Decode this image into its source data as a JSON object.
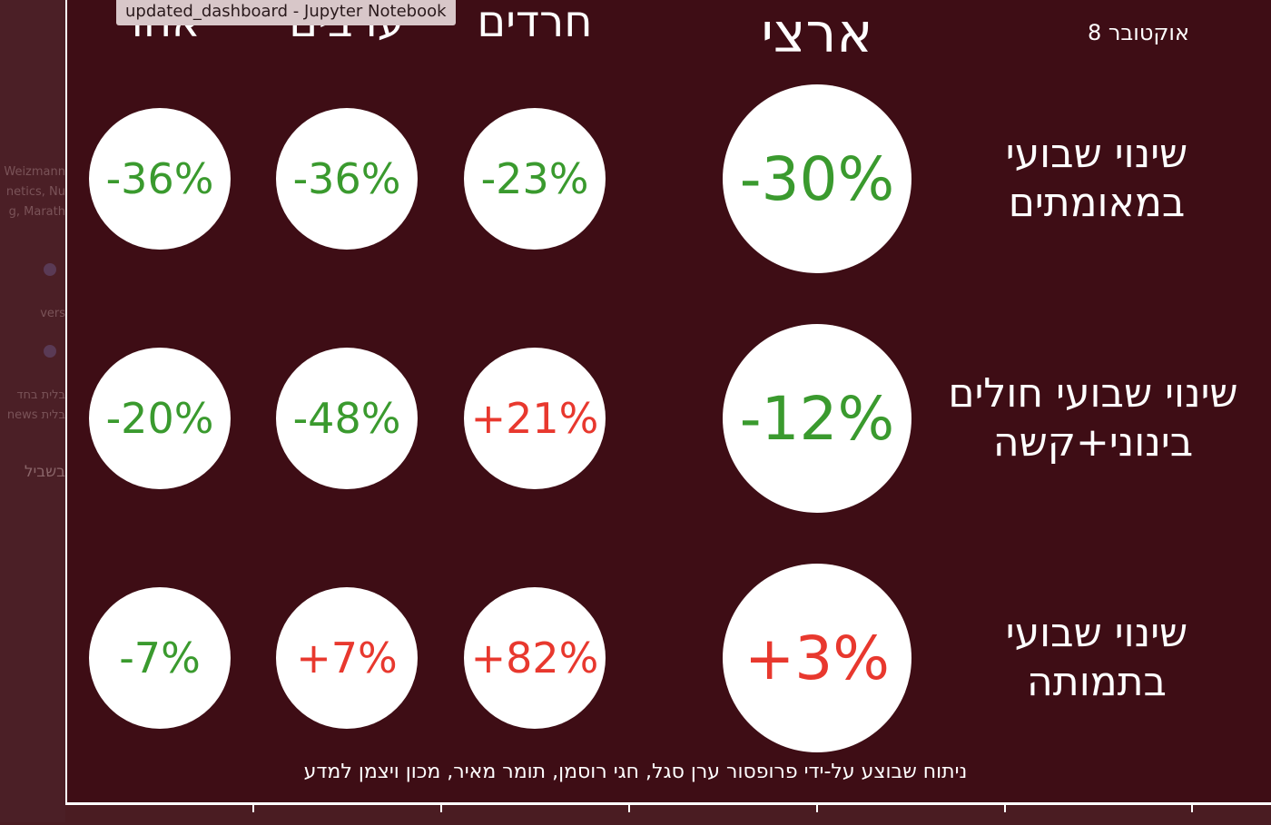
{
  "window": {
    "title": "updated_dashboard - Jupyter Notebook"
  },
  "background_fragments": [
    "Weizmann",
    "netics, Nu",
    "g, Marath",
    "vers",
    "בלית בחד",
    "news בלית",
    "בשביל"
  ],
  "header": {
    "date": "אוקטובר 8"
  },
  "chart_data": {
    "type": "table",
    "columns": [
      {
        "key": "national",
        "label": "ארצי"
      },
      {
        "key": "haredi",
        "label": "חרדים"
      },
      {
        "key": "arabs",
        "label": "ערבים"
      },
      {
        "key": "rest",
        "label": "אחר"
      }
    ],
    "rows": [
      {
        "label": [
          "שינוי שבועי",
          "במאומתים"
        ],
        "values": [
          "-30%",
          "-23%",
          "-36%",
          "-36%"
        ]
      },
      {
        "label": [
          "שינוי שבועי חולים",
          "בינוני+קשה"
        ],
        "values": [
          "-12%",
          "+21%",
          "-48%",
          "-20%"
        ]
      },
      {
        "label": [
          "שינוי שבועי",
          "בתמותה"
        ],
        "values": [
          "+3%",
          "+82%",
          "+7%",
          "-7%"
        ]
      }
    ],
    "colors": {
      "decrease": "#3a9a2e",
      "increase": "#e8382e",
      "background": "#3e0d15"
    }
  },
  "footer": {
    "credit": "ניתוח שבוצע על-ידי פרופסור ערן סגל, חגי רוסמן, תומר מאיר, מכון ויצמן למדע"
  }
}
